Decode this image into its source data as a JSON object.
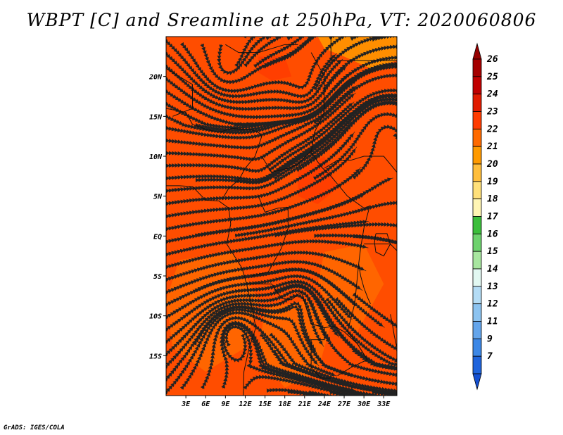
{
  "title": "WBPT [C] and Sreamline at 250hPa, VT: 2020060806",
  "credit": "GrADS: IGES/COLA",
  "map": {
    "variable": "WBPT",
    "units": "C",
    "level": "250hPa",
    "valid_time": "2020060806",
    "lon_range": [
      0,
      35
    ],
    "lat_range": [
      -20,
      25
    ],
    "lon_ticks": [
      {
        "value": 3,
        "label": "3E"
      },
      {
        "value": 6,
        "label": "6E"
      },
      {
        "value": 9,
        "label": "9E"
      },
      {
        "value": 12,
        "label": "12E"
      },
      {
        "value": 15,
        "label": "15E"
      },
      {
        "value": 18,
        "label": "18E"
      },
      {
        "value": 21,
        "label": "21E"
      },
      {
        "value": 24,
        "label": "24E"
      },
      {
        "value": 27,
        "label": "27E"
      },
      {
        "value": 30,
        "label": "30E"
      },
      {
        "value": 33,
        "label": "33E"
      }
    ],
    "lat_ticks": [
      {
        "value": 20,
        "label": "20N"
      },
      {
        "value": 15,
        "label": "15N"
      },
      {
        "value": 10,
        "label": "10N"
      },
      {
        "value": 5,
        "label": "5N"
      },
      {
        "value": 0,
        "label": "EQ"
      },
      {
        "value": -5,
        "label": "5S"
      },
      {
        "value": -10,
        "label": "10S"
      },
      {
        "value": -15,
        "label": "15S"
      }
    ]
  },
  "colorbar": {
    "levels": [
      {
        "label": "26",
        "color": "#a50000"
      },
      {
        "label": "25",
        "color": "#c00000"
      },
      {
        "label": "24",
        "color": "#e11b00"
      },
      {
        "label": "23",
        "color": "#ff3c00"
      },
      {
        "label": "22",
        "color": "#ff6a00"
      },
      {
        "label": "21",
        "color": "#ff9a00"
      },
      {
        "label": "20",
        "color": "#ffbe3c"
      },
      {
        "label": "19",
        "color": "#ffe07a"
      },
      {
        "label": "18",
        "color": "#fff5b4"
      },
      {
        "label": "17",
        "color": "#3cbe3c"
      },
      {
        "label": "16",
        "color": "#6ed26e"
      },
      {
        "label": "15",
        "color": "#a8e6a0"
      },
      {
        "label": "14",
        "color": "#e2f8f2"
      },
      {
        "label": "13",
        "color": "#b4dcf5"
      },
      {
        "label": "12",
        "color": "#8cc3f0"
      },
      {
        "label": "11",
        "color": "#64a5eb"
      },
      {
        "label": "9",
        "color": "#3c87e6"
      },
      {
        "label": "7",
        "color": "#1f64dc"
      }
    ],
    "top_arrow_color": "#960000",
    "bottom_arrow_color": "#1450d2"
  },
  "colors": {
    "background_fill": "#ff4d00",
    "warm_patch": "#ff6a00",
    "hot_patch": "#ff3c00",
    "light_patch": "#ff9a00",
    "streamline": "#222222",
    "coastline": "#111111"
  }
}
